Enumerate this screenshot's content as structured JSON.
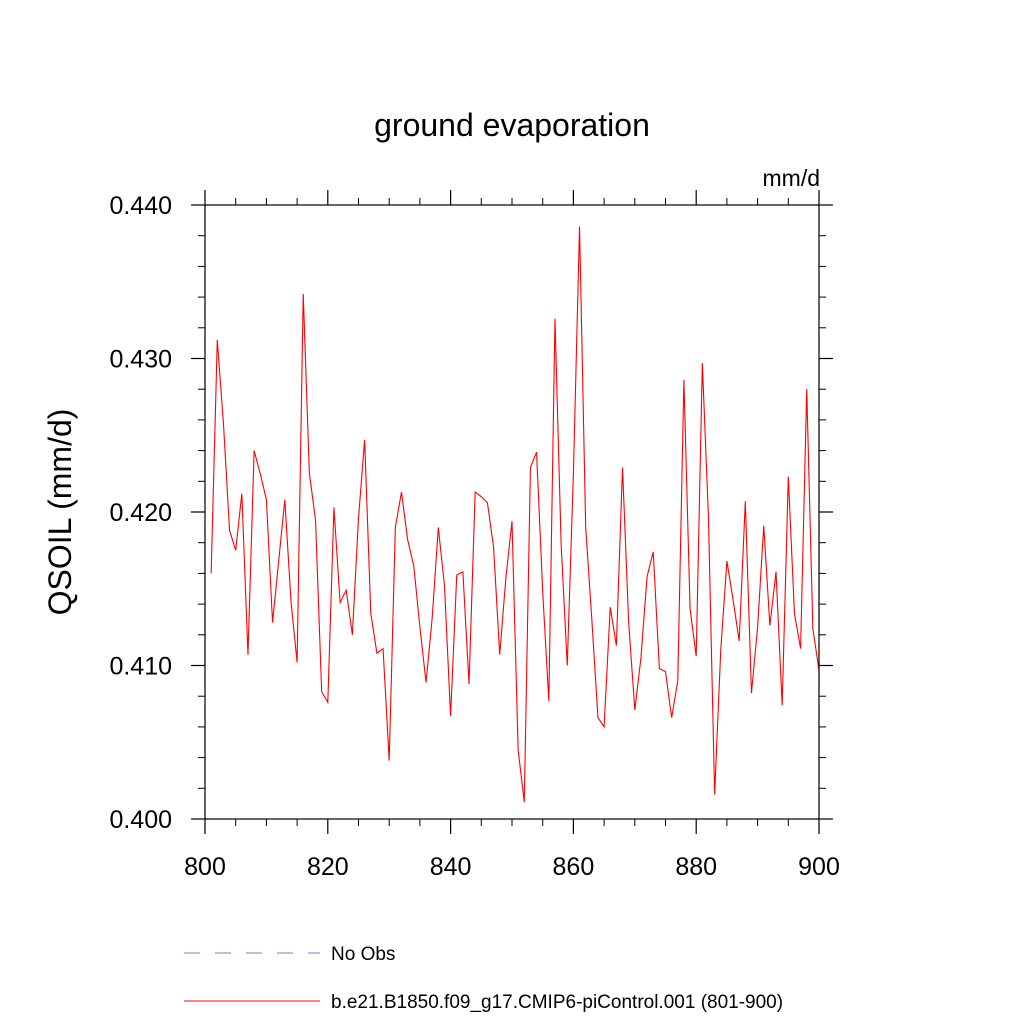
{
  "chart_data": {
    "type": "line",
    "title": "ground evaporation",
    "units_label": "mm/d",
    "ylabel": "QSOIL  (mm/d)",
    "xlabel": "",
    "xlim": [
      800,
      900
    ],
    "ylim": [
      0.4,
      0.44
    ],
    "x_ticks": [
      800,
      820,
      840,
      860,
      880,
      900
    ],
    "x_tick_labels": [
      "800",
      "820",
      "840",
      "860",
      "880",
      "900"
    ],
    "y_ticks": [
      0.4,
      0.41,
      0.42,
      0.43,
      0.44
    ],
    "y_tick_labels": [
      "0.400",
      "0.410",
      "0.420",
      "0.430",
      "0.440"
    ],
    "grid": false,
    "series": [
      {
        "name": "b.e21.B1850.f09_g17.CMIP6-piControl.001 (801-900)",
        "color": "#ff0000",
        "dash": "solid",
        "x": [
          801,
          802,
          803,
          804,
          805,
          806,
          807,
          808,
          809,
          810,
          811,
          812,
          813,
          814,
          815,
          816,
          817,
          818,
          819,
          820,
          821,
          822,
          823,
          824,
          825,
          826,
          827,
          828,
          829,
          830,
          831,
          832,
          833,
          834,
          835,
          836,
          837,
          838,
          839,
          840,
          841,
          842,
          843,
          844,
          845,
          846,
          847,
          848,
          849,
          850,
          851,
          852,
          853,
          854,
          855,
          856,
          857,
          858,
          859,
          860,
          861,
          862,
          863,
          864,
          865,
          866,
          867,
          868,
          869,
          870,
          871,
          872,
          873,
          874,
          875,
          876,
          877,
          878,
          879,
          880,
          881,
          882,
          883,
          884,
          885,
          886,
          887,
          888,
          889,
          890,
          891,
          892,
          893,
          894,
          895,
          896,
          897,
          898,
          899,
          900
        ],
        "values": [
          0.416,
          0.4312,
          0.4258,
          0.4188,
          0.4175,
          0.4212,
          0.4107,
          0.424,
          0.4225,
          0.4208,
          0.4128,
          0.4168,
          0.4208,
          0.4142,
          0.4102,
          0.4342,
          0.4225,
          0.4195,
          0.4083,
          0.4076,
          0.4203,
          0.4141,
          0.4149,
          0.412,
          0.4196,
          0.4247,
          0.4134,
          0.4108,
          0.4111,
          0.4038,
          0.419,
          0.4213,
          0.4182,
          0.4165,
          0.4125,
          0.4089,
          0.4131,
          0.419,
          0.4152,
          0.4067,
          0.4159,
          0.4161,
          0.4088,
          0.4213,
          0.421,
          0.4206,
          0.4177,
          0.4107,
          0.4157,
          0.4194,
          0.4045,
          0.4011,
          0.4229,
          0.4239,
          0.4148,
          0.4077,
          0.4326,
          0.4179,
          0.41,
          0.4225,
          0.4386,
          0.419,
          0.413,
          0.4066,
          0.406,
          0.4138,
          0.4113,
          0.4229,
          0.4128,
          0.4071,
          0.4105,
          0.4158,
          0.4174,
          0.4098,
          0.4096,
          0.4066,
          0.409,
          0.4286,
          0.4137,
          0.4106,
          0.4297,
          0.4196,
          0.4016,
          0.411,
          0.4168,
          0.4143,
          0.4116,
          0.4207,
          0.4082,
          0.4125,
          0.4191,
          0.4126,
          0.4161,
          0.4074,
          0.4223,
          0.4134,
          0.4111,
          0.428,
          0.4124,
          0.4097
        ]
      }
    ],
    "legend": [
      {
        "label": "No Obs",
        "color": "#7777cc",
        "dash": "dashed"
      },
      {
        "label": "b.e21.B1850.f09_g17.CMIP6-piControl.001 (801-900)",
        "color": "#ff0000",
        "dash": "solid"
      }
    ],
    "legend_position": "bottom-left"
  }
}
